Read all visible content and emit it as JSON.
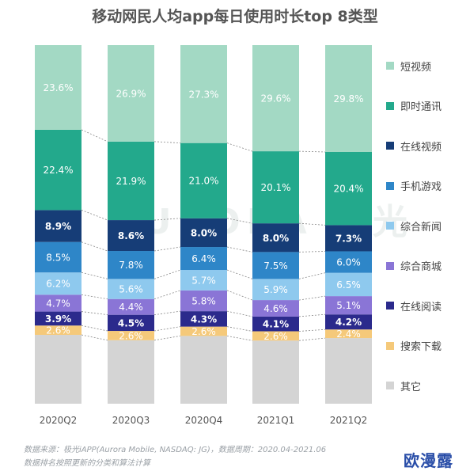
{
  "title": "移动网民人均app每日使用时长top 8类型",
  "chart_data": {
    "type": "bar",
    "stacked": true,
    "normalized_100": true,
    "categories": [
      "2020Q2",
      "2020Q3",
      "2020Q4",
      "2021Q1",
      "2021Q2"
    ],
    "series": [
      {
        "name": "其它",
        "color": "#d4d4d4",
        "values": [
          null,
          null,
          null,
          null,
          null
        ]
      },
      {
        "name": "搜索下载",
        "color": "#f5c97a",
        "values": [
          2.6,
          2.6,
          2.6,
          2.6,
          2.4
        ]
      },
      {
        "name": "在线阅读",
        "color": "#2b2a8c",
        "values": [
          3.9,
          4.5,
          4.3,
          4.1,
          4.2
        ]
      },
      {
        "name": "综合商城",
        "color": "#8a75d6",
        "values": [
          4.7,
          4.4,
          5.8,
          4.6,
          5.1
        ]
      },
      {
        "name": "综合新闻",
        "color": "#8ec9ee",
        "values": [
          6.2,
          5.6,
          5.7,
          5.9,
          6.5
        ]
      },
      {
        "name": "手机游戏",
        "color": "#2e86c8",
        "values": [
          8.5,
          7.8,
          6.4,
          7.5,
          6.0
        ]
      },
      {
        "name": "在线视频",
        "color": "#163d77",
        "values": [
          8.9,
          8.6,
          8.0,
          8.0,
          7.3
        ]
      },
      {
        "name": "即时通讯",
        "color": "#23a98c",
        "values": [
          22.4,
          21.9,
          21.0,
          20.1,
          20.4
        ]
      },
      {
        "name": "短视频",
        "color": "#a3d9c4",
        "values": [
          23.6,
          26.9,
          27.3,
          29.6,
          29.8
        ]
      }
    ],
    "legend_order": [
      "短视频",
      "即时通讯",
      "在线视频",
      "手机游戏",
      "综合新闻",
      "综合商城",
      "在线阅读",
      "搜索下载",
      "其它"
    ],
    "value_labels": [
      [
        "",
        "2.6%",
        "3.9%",
        "4.7%",
        "6.2%",
        "8.5%",
        "8.9%",
        "22.4%",
        "23.6%"
      ],
      [
        "",
        "2.6%",
        "4.5%",
        "4.4%",
        "5.6%",
        "7.8%",
        "8.6%",
        "21.9%",
        "26.9%"
      ],
      [
        "",
        "2.6%",
        "4.3%",
        "5.8%",
        "5.7%",
        "6.4%",
        "8.0%",
        "21.0%",
        "27.3%"
      ],
      [
        "",
        "2.6%",
        "4.1%",
        "4.6%",
        "5.9%",
        "7.5%",
        "8.0%",
        "20.1%",
        "29.6%"
      ],
      [
        "",
        "2.4%",
        "4.2%",
        "5.1%",
        "6.5%",
        "6.0%",
        "7.3%",
        "20.4%",
        "29.8%"
      ]
    ],
    "legend_position": "right",
    "grid": false
  },
  "footnote": {
    "line1": "数据来源：极光iAPP(Aurora Mobile, NASDAQ: JG)，数据周期：2020.04-2021.06",
    "line2": "数据排名按照更新的分类和算法计算"
  },
  "background_watermark": "AURORA 极光",
  "corner_watermark": "欧漫露"
}
